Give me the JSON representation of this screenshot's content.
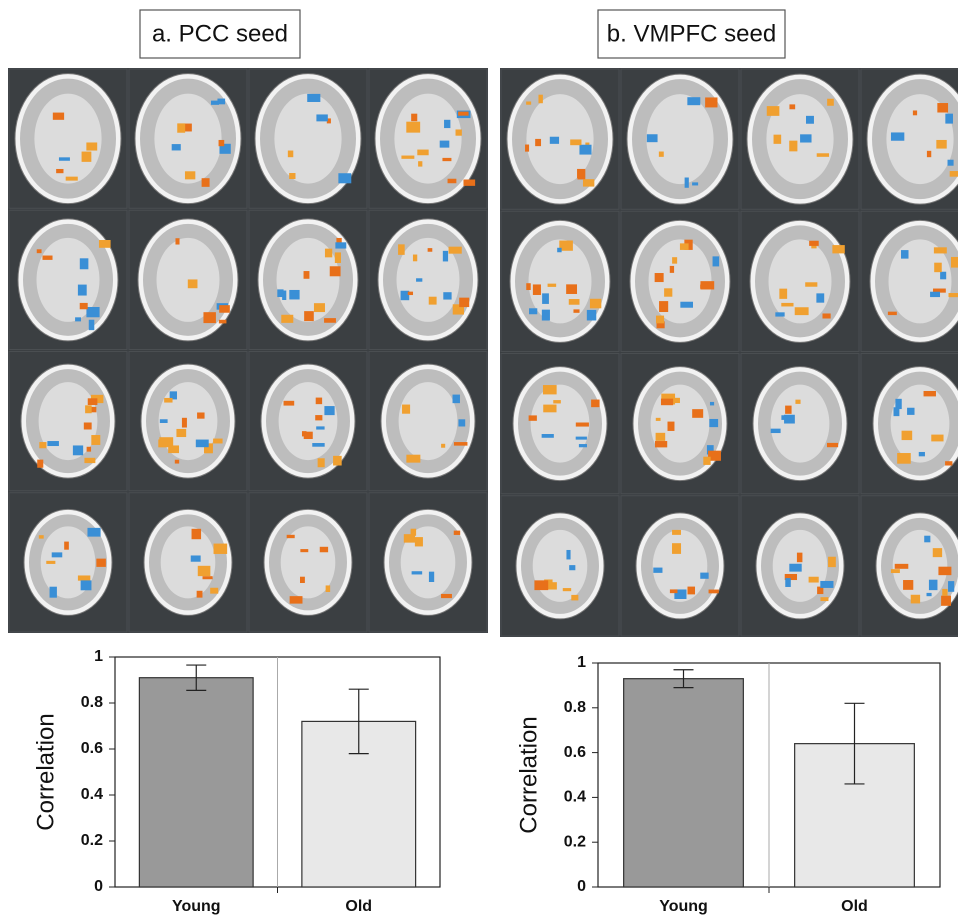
{
  "chart_data": [
    {
      "type": "bar",
      "title": "a. PCC seed",
      "ylabel": "Correlation",
      "categories": [
        "Young",
        "Old"
      ],
      "values": [
        0.91,
        0.72
      ],
      "errors": [
        0.055,
        0.14
      ],
      "colors": [
        "#999999",
        "#e8e8e8"
      ],
      "ylim": [
        0,
        1
      ],
      "yticks": [
        0,
        0.2,
        0.4,
        0.6,
        0.8,
        1
      ]
    },
    {
      "type": "bar",
      "title": "b. VMPFC seed",
      "ylabel": "Correlation",
      "categories": [
        "Young",
        "Old"
      ],
      "values": [
        0.93,
        0.64
      ],
      "errors": [
        0.04,
        0.18
      ],
      "colors": [
        "#999999",
        "#e8e8e8"
      ],
      "ylim": [
        0,
        1
      ],
      "yticks": [
        0,
        0.2,
        0.4,
        0.6,
        0.8,
        1
      ]
    }
  ]
}
